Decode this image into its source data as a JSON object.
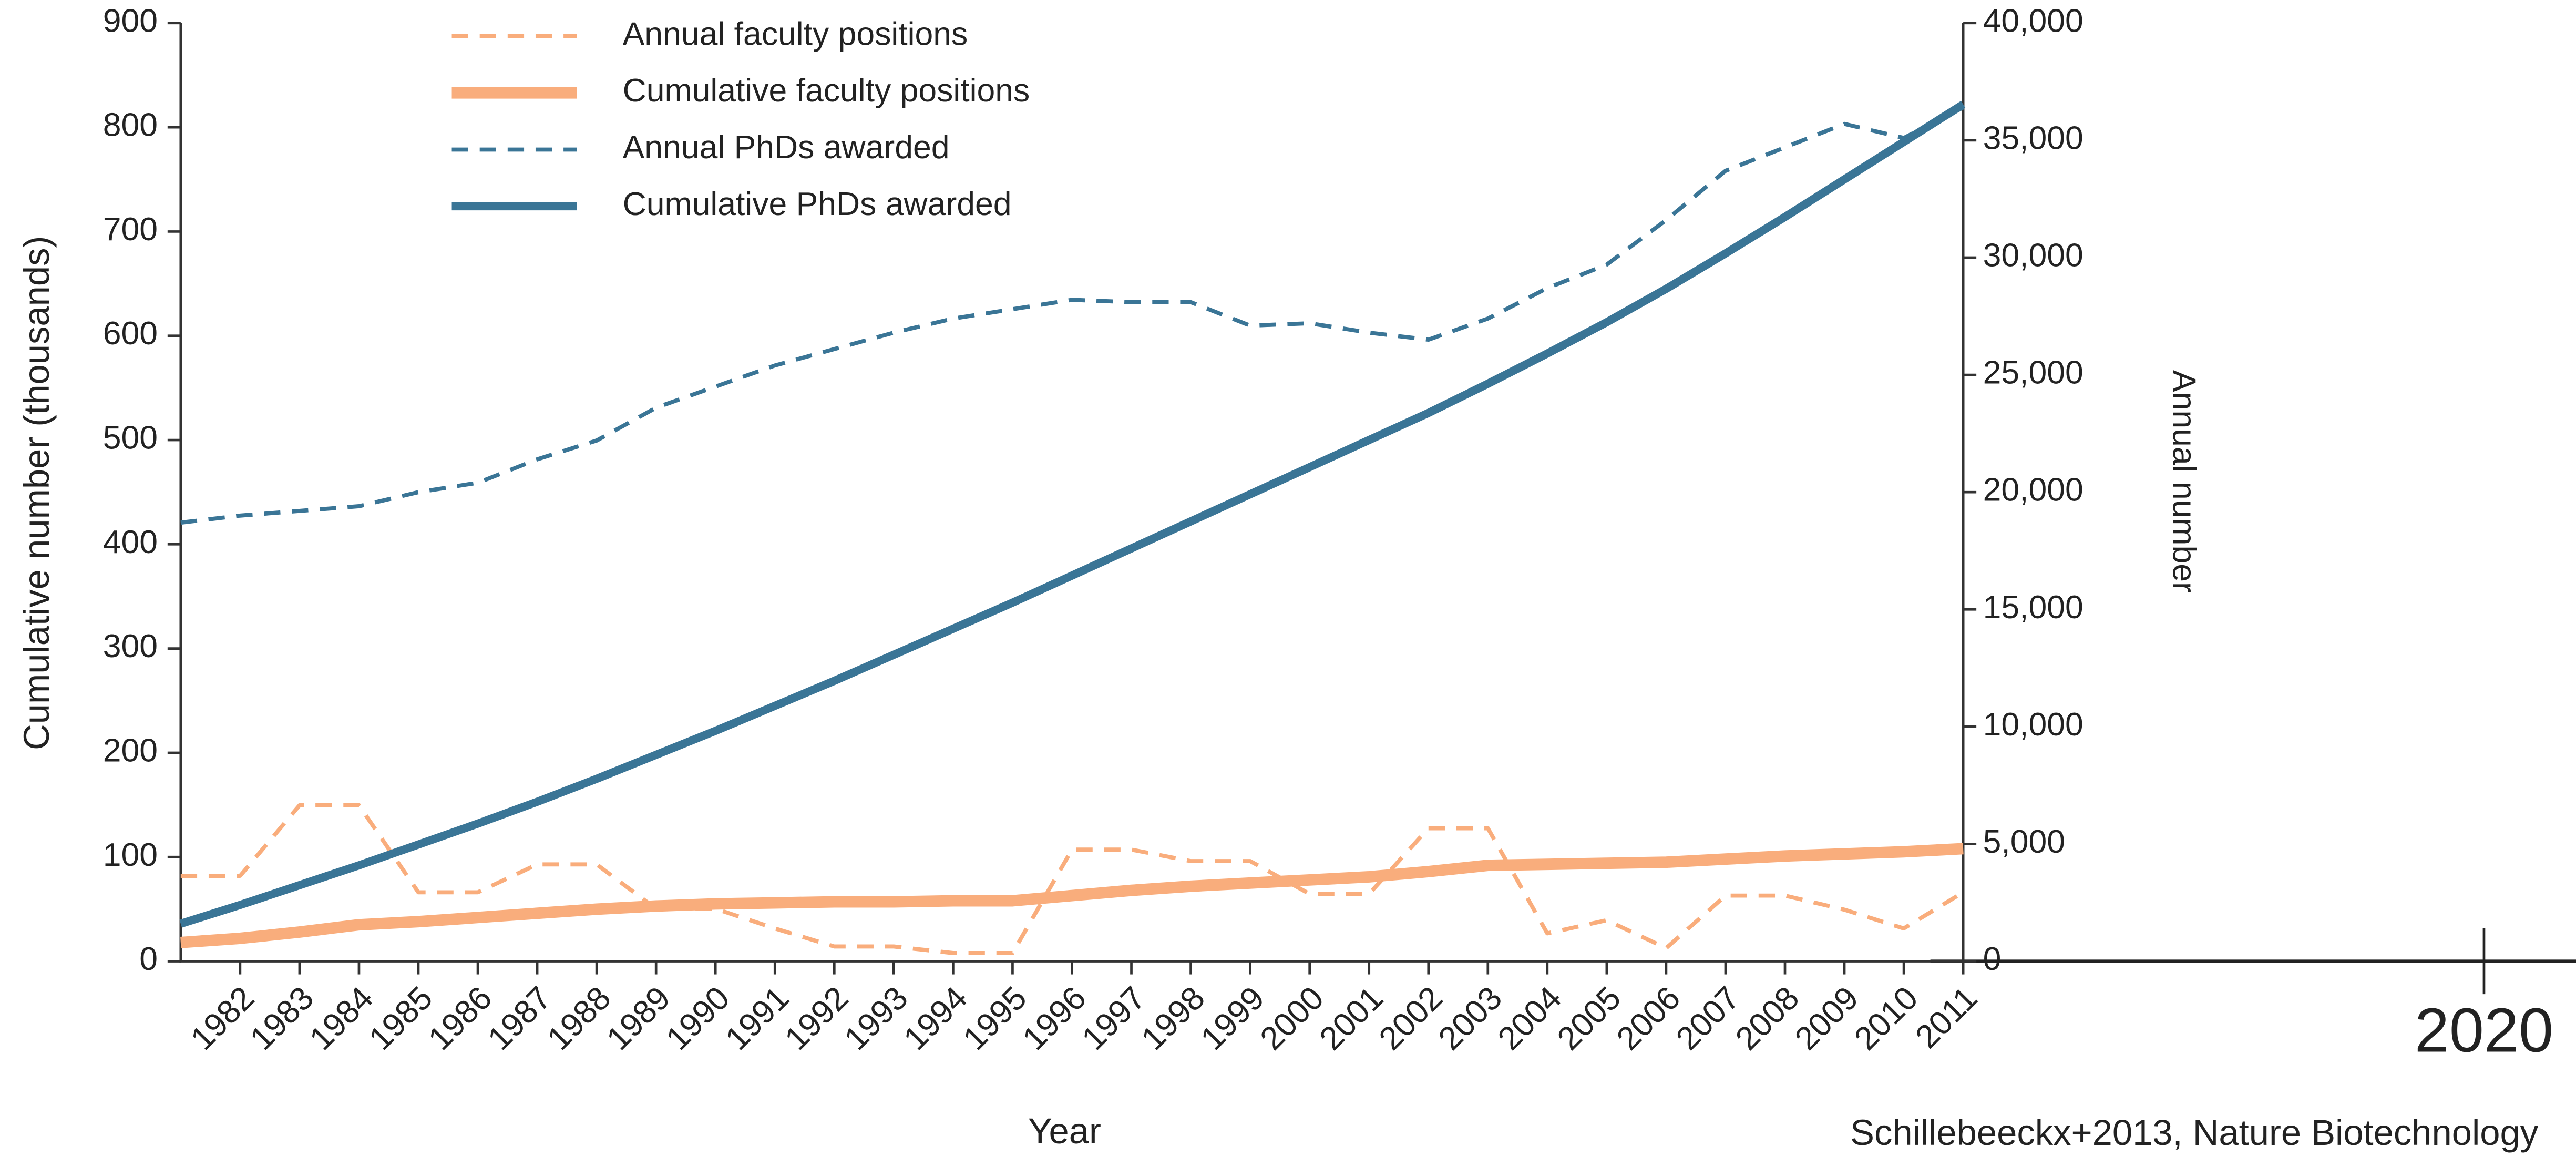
{
  "chart_data": {
    "type": "line",
    "x_label": "Year",
    "y_label": "Cumulative number (thousands)",
    "y2_label": "Annual number",
    "annotations": [
      "2020",
      "Schillebeeckx+2013, Nature Biotechnology"
    ],
    "legend": "top-left",
    "x": [
      1981,
      1982,
      1983,
      1984,
      1985,
      1986,
      1987,
      1988,
      1989,
      1990,
      1991,
      1992,
      1993,
      1994,
      1995,
      1996,
      1997,
      1998,
      1999,
      2000,
      2001,
      2002,
      2003,
      2004,
      2005,
      2006,
      2007,
      2008,
      2009,
      2010,
      2011
    ],
    "xlim": [
      1981,
      2011
    ],
    "xticks": [
      1982,
      1983,
      1984,
      1985,
      1986,
      1987,
      1988,
      1989,
      1990,
      1991,
      1992,
      1993,
      1994,
      1995,
      1996,
      1997,
      1998,
      1999,
      2000,
      2001,
      2002,
      2003,
      2004,
      2005,
      2006,
      2007,
      2008,
      2009,
      2010,
      2011
    ],
    "ylim": [
      0,
      900
    ],
    "yticks": [
      0,
      100,
      200,
      300,
      400,
      500,
      600,
      700,
      800,
      900
    ],
    "y2lim": [
      0,
      40000
    ],
    "y2ticks": [
      0,
      {
        "value": 5000,
        "label": "5,000"
      },
      {
        "value": 10000,
        "label": "10,000"
      },
      {
        "value": 15000,
        "label": "15,000"
      },
      {
        "value": 20000,
        "label": "20,000"
      },
      {
        "value": 25000,
        "label": "25,000"
      },
      {
        "value": 30000,
        "label": "30,000"
      },
      {
        "value": 35000,
        "label": "35,000"
      },
      {
        "value": 40000,
        "label": "40,000"
      }
    ],
    "series": [
      {
        "name": "Annual faculty positions",
        "color": "#f9ad7c",
        "style": "dashed",
        "width": 2.5,
        "axis": "y2",
        "values": [
          3640,
          3640,
          6650,
          6650,
          2940,
          2940,
          4130,
          4130,
          2240,
          2240,
          1400,
          630,
          630,
          350,
          350,
          4760,
          4760,
          4270,
          4270,
          2870,
          2870,
          5670,
          5670,
          1190,
          1750,
          560,
          2800,
          2800,
          2200,
          1400,
          2940
        ]
      },
      {
        "name": "Cumulative faculty positions",
        "color": "#f9ad7c",
        "style": "solid",
        "width": 7,
        "values": [
          18,
          22,
          28,
          35,
          38,
          42,
          46,
          50,
          53,
          55,
          56,
          57,
          57,
          58,
          58,
          63,
          68,
          72,
          75,
          78,
          81,
          86,
          92,
          93,
          94,
          95,
          98,
          101,
          103,
          105,
          108
        ]
      },
      {
        "name": "Annual PhDs awarded",
        "color": "#3a7596",
        "style": "dashed",
        "width": 2.5,
        "axis": "y2",
        "values": [
          18700,
          19000,
          19200,
          19400,
          20000,
          20400,
          21400,
          22200,
          23600,
          24500,
          25400,
          26100,
          26800,
          27400,
          27800,
          28200,
          28100,
          28100,
          27100,
          27200,
          26800,
          26500,
          27400,
          28700,
          29700,
          31600,
          33700,
          34700,
          35700,
          35100,
          36400
        ]
      },
      {
        "name": "Cumulative PhDs awarded",
        "color": "#3a7596",
        "style": "solid",
        "width": 5,
        "values": [
          36,
          54,
          73,
          92,
          112,
          132,
          153,
          175,
          198,
          221,
          245,
          269,
          294,
          319,
          344,
          370,
          396,
          422,
          448,
          474,
          500,
          526,
          554,
          583,
          613,
          645,
          679,
          714,
          750,
          786,
          822
        ]
      }
    ]
  }
}
